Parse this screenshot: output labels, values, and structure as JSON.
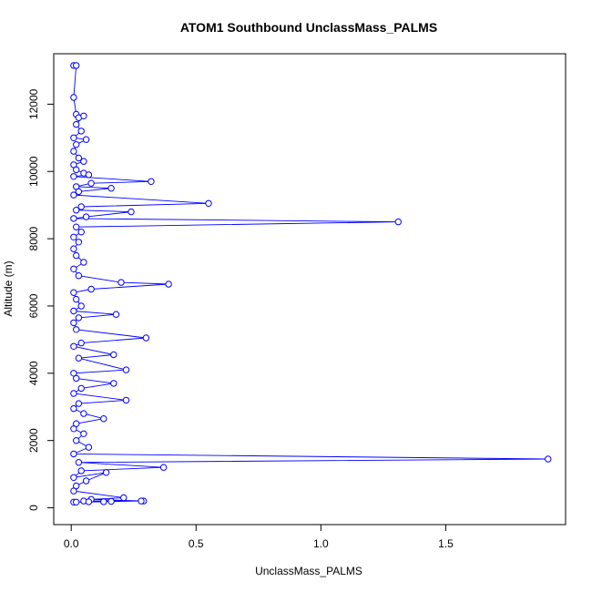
{
  "chart_data": {
    "type": "line",
    "title": "ATOM1 Southbound UnclassMass_PALMS",
    "xlabel": "UnclassMass_PALMS",
    "ylabel": "Altitude (m)",
    "xlim": [
      -0.07,
      1.98
    ],
    "ylim": [
      -500,
      13500
    ],
    "x_ticks": [
      {
        "value": 0,
        "label": "0.0"
      },
      {
        "value": 0.5,
        "label": "0.5"
      },
      {
        "value": 1.0,
        "label": "1.0"
      },
      {
        "value": 1.5,
        "label": "1.5"
      }
    ],
    "y_ticks": [
      {
        "value": 0,
        "label": "0"
      },
      {
        "value": 2000,
        "label": "2000"
      },
      {
        "value": 4000,
        "label": "4000"
      },
      {
        "value": 6000,
        "label": "6000"
      },
      {
        "value": 8000,
        "label": "8000"
      },
      {
        "value": 10000,
        "label": "10000"
      },
      {
        "value": 12000,
        "label": "12000"
      }
    ],
    "grid": false,
    "series_color": "#0000ff",
    "series": [
      {
        "marker": "open-circle",
        "points": [
          [
            0.01,
            13150
          ],
          [
            0.02,
            13150
          ],
          [
            0.01,
            12200
          ],
          [
            0.02,
            11700
          ],
          [
            0.03,
            11600
          ],
          [
            0.05,
            11650
          ],
          [
            0.02,
            11400
          ],
          [
            0.04,
            11200
          ],
          [
            0.01,
            11000
          ],
          [
            0.06,
            10950
          ],
          [
            0.02,
            10800
          ],
          [
            0.01,
            10600
          ],
          [
            0.03,
            10400
          ],
          [
            0.05,
            10300
          ],
          [
            0.01,
            10200
          ],
          [
            0.02,
            10050
          ],
          [
            0.05,
            9950
          ],
          [
            0.07,
            9900
          ],
          [
            0.01,
            9850
          ],
          [
            0.32,
            9700
          ],
          [
            0.08,
            9650
          ],
          [
            0.02,
            9550
          ],
          [
            0.16,
            9500
          ],
          [
            0.03,
            9400
          ],
          [
            0.01,
            9300
          ],
          [
            0.55,
            9050
          ],
          [
            0.04,
            8950
          ],
          [
            0.02,
            8850
          ],
          [
            0.24,
            8800
          ],
          [
            0.06,
            8650
          ],
          [
            0.01,
            8600
          ],
          [
            1.31,
            8500
          ],
          [
            0.02,
            8350
          ],
          [
            0.04,
            8200
          ],
          [
            0.01,
            8050
          ],
          [
            0.03,
            7900
          ],
          [
            0.01,
            7700
          ],
          [
            0.02,
            7500
          ],
          [
            0.05,
            7300
          ],
          [
            0.01,
            7100
          ],
          [
            0.03,
            6900
          ],
          [
            0.2,
            6700
          ],
          [
            0.39,
            6650
          ],
          [
            0.08,
            6500
          ],
          [
            0.01,
            6400
          ],
          [
            0.02,
            6200
          ],
          [
            0.04,
            6000
          ],
          [
            0.01,
            5850
          ],
          [
            0.18,
            5750
          ],
          [
            0.03,
            5650
          ],
          [
            0.01,
            5500
          ],
          [
            0.02,
            5300
          ],
          [
            0.3,
            5050
          ],
          [
            0.04,
            4900
          ],
          [
            0.01,
            4800
          ],
          [
            0.17,
            4550
          ],
          [
            0.03,
            4450
          ],
          [
            0.22,
            4100
          ],
          [
            0.01,
            4000
          ],
          [
            0.02,
            3850
          ],
          [
            0.17,
            3700
          ],
          [
            0.04,
            3550
          ],
          [
            0.01,
            3400
          ],
          [
            0.22,
            3200
          ],
          [
            0.03,
            3100
          ],
          [
            0.01,
            2950
          ],
          [
            0.05,
            2800
          ],
          [
            0.13,
            2650
          ],
          [
            0.02,
            2500
          ],
          [
            0.01,
            2350
          ],
          [
            0.05,
            2200
          ],
          [
            0.02,
            2000
          ],
          [
            0.07,
            1800
          ],
          [
            0.01,
            1600
          ],
          [
            1.91,
            1450
          ],
          [
            0.03,
            1350
          ],
          [
            0.37,
            1200
          ],
          [
            0.04,
            1100
          ],
          [
            0.01,
            900
          ],
          [
            0.14,
            1050
          ],
          [
            0.06,
            800
          ],
          [
            0.02,
            650
          ],
          [
            0.01,
            500
          ],
          [
            0.21,
            300
          ],
          [
            0.08,
            250
          ],
          [
            0.29,
            200
          ],
          [
            0.05,
            200
          ],
          [
            0.13,
            180
          ],
          [
            0.01,
            170
          ],
          [
            0.16,
            190
          ],
          [
            0.28,
            200
          ],
          [
            0.07,
            180
          ],
          [
            0.02,
            170
          ]
        ]
      }
    ]
  }
}
